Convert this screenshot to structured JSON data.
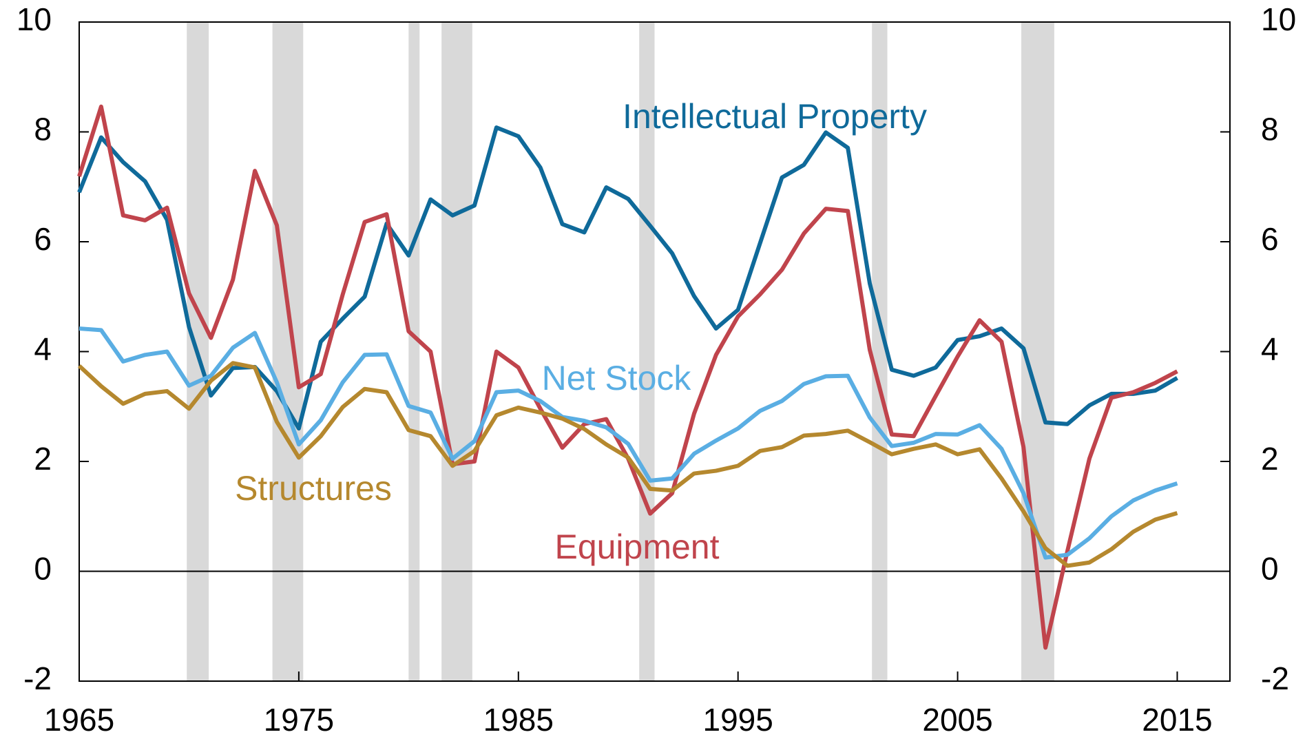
{
  "chart_data": {
    "type": "line",
    "x": [
      1965,
      1966,
      1967,
      1968,
      1969,
      1970,
      1971,
      1972,
      1973,
      1974,
      1975,
      1976,
      1977,
      1978,
      1979,
      1980,
      1981,
      1982,
      1983,
      1984,
      1985,
      1986,
      1987,
      1988,
      1989,
      1990,
      1991,
      1992,
      1993,
      1994,
      1995,
      1996,
      1997,
      1998,
      1999,
      2000,
      2001,
      2002,
      2003,
      2004,
      2005,
      2006,
      2007,
      2008,
      2009,
      2010,
      2011,
      2012,
      2013,
      2014,
      2015
    ],
    "series": [
      {
        "name": "Intellectual Property",
        "color": "#0f6a9a",
        "values": [
          6.9,
          7.9,
          7.45,
          7.1,
          6.4,
          4.45,
          3.2,
          3.7,
          3.72,
          3.28,
          2.6,
          4.18,
          4.6,
          5.0,
          6.33,
          5.75,
          6.77,
          6.48,
          6.66,
          8.08,
          7.92,
          7.35,
          6.32,
          6.17,
          6.99,
          6.78,
          6.29,
          5.79,
          5.01,
          4.42,
          4.76,
          5.97,
          7.17,
          7.4,
          7.99,
          7.71,
          5.24,
          3.67,
          3.56,
          3.71,
          4.21,
          4.28,
          4.42,
          4.06,
          2.71,
          2.68,
          3.02,
          3.23,
          3.23,
          3.29,
          3.52
        ]
      },
      {
        "name": "Equipment",
        "color": "#c0444c",
        "values": [
          7.19,
          8.46,
          6.48,
          6.39,
          6.62,
          5.06,
          4.25,
          5.31,
          7.29,
          6.3,
          3.35,
          3.59,
          5.04,
          6.36,
          6.5,
          4.37,
          4.0,
          1.95,
          2.0,
          4.0,
          3.71,
          2.96,
          2.25,
          2.68,
          2.77,
          2.05,
          1.05,
          1.42,
          2.87,
          3.94,
          4.64,
          5.04,
          5.49,
          6.15,
          6.6,
          6.56,
          4.03,
          2.49,
          2.46,
          3.19,
          3.91,
          4.57,
          4.18,
          2.26,
          -1.39,
          0.37,
          2.05,
          3.16,
          3.26,
          3.43,
          3.64
        ]
      },
      {
        "name": "Net Stock",
        "color": "#5aaee3",
        "values": [
          4.42,
          4.39,
          3.82,
          3.94,
          4.0,
          3.38,
          3.56,
          4.07,
          4.34,
          3.44,
          2.31,
          2.75,
          3.44,
          3.94,
          3.95,
          3.01,
          2.89,
          2.05,
          2.37,
          3.26,
          3.29,
          3.1,
          2.81,
          2.74,
          2.62,
          2.32,
          1.65,
          1.69,
          2.14,
          2.38,
          2.6,
          2.92,
          3.1,
          3.41,
          3.55,
          3.56,
          2.8,
          2.28,
          2.34,
          2.5,
          2.49,
          2.66,
          2.23,
          1.42,
          0.25,
          0.3,
          0.6,
          1.0,
          1.29,
          1.47,
          1.6
        ]
      },
      {
        "name": "Structures",
        "color": "#b5882e",
        "values": [
          3.74,
          3.37,
          3.05,
          3.23,
          3.28,
          2.96,
          3.47,
          3.79,
          3.71,
          2.72,
          2.07,
          2.46,
          2.99,
          3.32,
          3.26,
          2.57,
          2.46,
          1.92,
          2.19,
          2.84,
          2.98,
          2.89,
          2.78,
          2.59,
          2.31,
          2.07,
          1.5,
          1.47,
          1.78,
          1.83,
          1.92,
          2.19,
          2.26,
          2.47,
          2.5,
          2.56,
          2.35,
          2.13,
          2.23,
          2.31,
          2.13,
          2.22,
          1.69,
          1.09,
          0.42,
          0.1,
          0.16,
          0.4,
          0.72,
          0.94,
          1.06
        ]
      }
    ],
    "recessions": [
      [
        1969.9,
        1970.9
      ],
      [
        1973.8,
        1975.2
      ],
      [
        1980.0,
        1980.5
      ],
      [
        1981.5,
        1982.9
      ],
      [
        1990.5,
        1991.2
      ],
      [
        2001.1,
        2001.8
      ],
      [
        2007.9,
        2009.4
      ]
    ],
    "xlim": [
      1965,
      2017.4
    ],
    "xticks": [
      1965,
      1975,
      1985,
      1995,
      2005,
      2015
    ],
    "ylim": [
      -2,
      10
    ],
    "yticks": [
      -2,
      0,
      2,
      4,
      6,
      8,
      10
    ],
    "y2lim": [
      -2,
      10
    ],
    "y2ticks": [
      -2,
      0,
      2,
      4,
      6,
      8,
      10
    ]
  }
}
